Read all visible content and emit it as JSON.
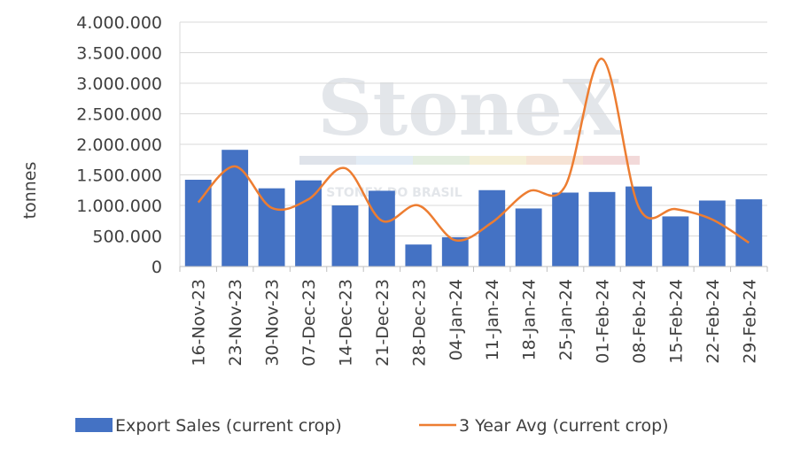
{
  "chart_data": {
    "type": "bar",
    "title": "",
    "xlabel": "",
    "ylabel": "tonnes",
    "ylim": [
      0,
      4000000
    ],
    "yticks": [
      0,
      500000,
      1000000,
      1500000,
      2000000,
      2500000,
      3000000,
      3500000,
      4000000
    ],
    "ytick_labels": [
      "0",
      "500.000",
      "1.000.000",
      "1.500.000",
      "2.000.000",
      "2.500.000",
      "3.000.000",
      "3.500.000",
      "4.000.000"
    ],
    "grid": "horizontal",
    "legend_position": "bottom",
    "categories": [
      "16-Nov-23",
      "23-Nov-23",
      "30-Nov-23",
      "07-Dec-23",
      "14-Dec-23",
      "21-Dec-23",
      "28-Dec-23",
      "04-Jan-24",
      "11-Jan-24",
      "18-Jan-24",
      "25-Jan-24",
      "01-Feb-24",
      "08-Feb-24",
      "15-Feb-24",
      "22-Feb-24",
      "29-Feb-24"
    ],
    "series": [
      {
        "name": "Export Sales (current crop)",
        "kind": "bar",
        "color": "#4472c4",
        "values": [
          1420000,
          1910000,
          1280000,
          1410000,
          1000000,
          1240000,
          360000,
          480000,
          1250000,
          950000,
          1210000,
          1220000,
          1310000,
          820000,
          1080000,
          1100000
        ]
      },
      {
        "name": "3 Year Avg (current crop)",
        "kind": "line",
        "color": "#ed7d31",
        "values": [
          1050000,
          1640000,
          960000,
          1100000,
          1610000,
          750000,
          1000000,
          430000,
          720000,
          1230000,
          1320000,
          3400000,
          970000,
          940000,
          770000,
          390000
        ]
      }
    ]
  },
  "watermark": {
    "brand": "StoneX",
    "subtitle": "STONEX DO BRASIL"
  }
}
